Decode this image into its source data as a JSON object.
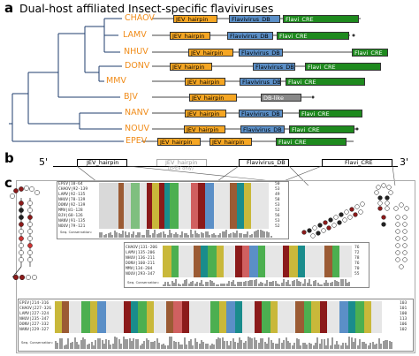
{
  "panel_a": {
    "letter": "a",
    "title": "Dual-host affiliated Insect-specific flaviviruses",
    "viruses": [
      {
        "name": "CHAOV",
        "elements": [
          "JEV_hairpin",
          "Flavivirus_DB",
          "Flavi_CRE"
        ]
      },
      {
        "name": "LAMV",
        "elements": [
          "JEV_hairpin",
          "Flavivirus_DB",
          "Flavi_CRE"
        ]
      },
      {
        "name": "NHUV",
        "elements": [
          "JEV_hairpin",
          "Flavivirus_DB",
          "Flavi_CRE"
        ]
      },
      {
        "name": "DONV",
        "elements": [
          "JEV_hairpin",
          "Flavivirus_DB",
          "Flavi_CRE"
        ]
      },
      {
        "name": "MMV",
        "elements": [
          "JEV_hairpin",
          "Flavivirus_DB",
          "Flavi_CRE"
        ]
      },
      {
        "name": "BJV",
        "elements": [
          "JEV_hairpin",
          "DB-like"
        ]
      },
      {
        "name": "NANV",
        "elements": [
          "JEV_hairpin",
          "Flavivirus_DB",
          "Flavi_CRE"
        ]
      },
      {
        "name": "NOUV",
        "elements": [
          "JEV_hairpin",
          "Flavivirus_DB",
          "Flavi_CRE"
        ]
      },
      {
        "name": "EPEV",
        "elements": [
          "JEV_hairpin",
          "JEV_hairpin",
          "Flavi_CRE"
        ]
      }
    ],
    "scale_mark": "*",
    "colors": {
      "jev_hairpin": "#f5a623",
      "flavivirus_db": "#5b8fc7",
      "flavi_cre": "#1e8a1e",
      "db_like": "#888888",
      "virus_label": "#f08c1a"
    }
  },
  "panel_b": {
    "letter": "b",
    "five_prime": "5'",
    "three_prime": "3'",
    "labels": {
      "jev": "JEV_hairpin",
      "jev_epev": "JEV_hairpin",
      "epev_only": "(EPEV only)",
      "db": "Flavivirus_DB",
      "cre": "Flavi_CRE"
    }
  },
  "panel_c": {
    "letter": "c",
    "alignment1": {
      "names": [
        "EPEV|10-64",
        "CHAOV|92-139",
        "LAMV|92-135",
        "NHUV|78-139",
        "DONV|92-139",
        "MMV|81-128",
        "BJV|68-126",
        "NANV|91-135",
        "NOUV|79-121"
      ],
      "ends": [
        "50",
        "53",
        "49",
        "58",
        "53",
        "52",
        "56",
        "53",
        "52"
      ],
      "conservation_label": "Seq. Conservation:"
    },
    "alignment2": {
      "names": [
        "CHAOV|131-206",
        "LAMV|135-206",
        "NHUV|136-211",
        "DONV|160-211",
        "MMV|134-204",
        "NOUV|293-347"
      ],
      "ends": [
        "76",
        "72",
        "78",
        "76",
        "70",
        "55"
      ],
      "conservation_label": "Seq. Conservation:"
    },
    "alignment3": {
      "names": [
        "EPEV|214-316",
        "CHAOV|227-326",
        "LAMV|227-324",
        "NHUV|235-347",
        "DONV|227-332",
        "NANV|229-327"
      ],
      "ends": [
        "103",
        "101",
        "100",
        "113",
        "106",
        "102"
      ],
      "conservation_label": "Seq. Conservation:"
    }
  }
}
